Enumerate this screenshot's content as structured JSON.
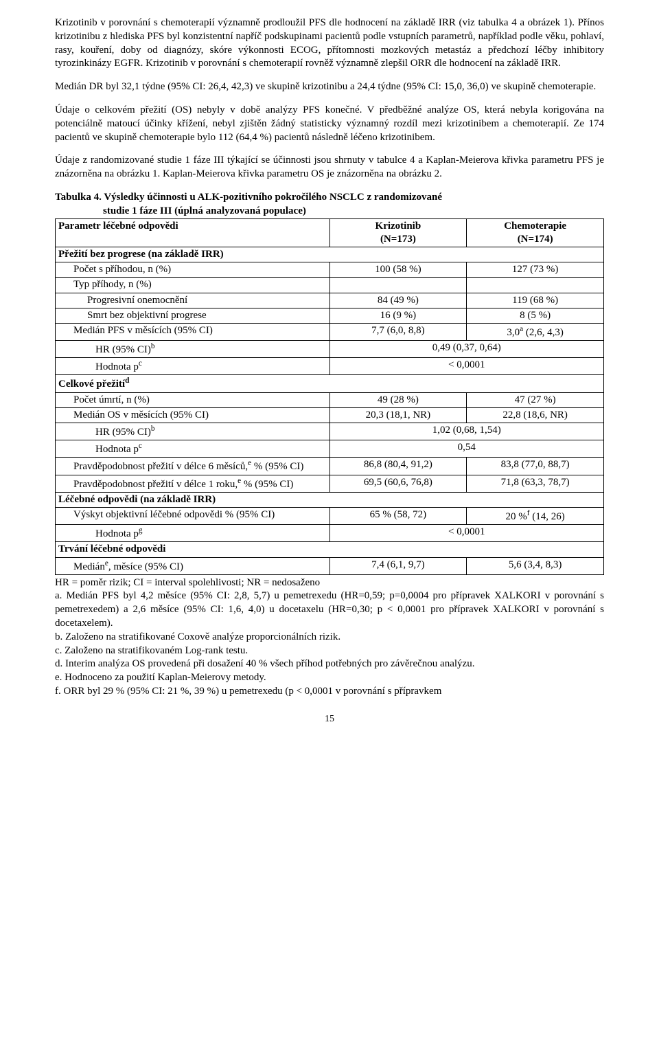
{
  "para1": "Krizotinib v porovnání s chemoterapií významně prodloužil PFS dle hodnocení na základě IRR (viz tabulka 4 a obrázek 1). Přínos krizotinibu z hlediska PFS byl konzistentní napříč podskupinami pacientů podle vstupních parametrů, například podle věku, pohlaví, rasy, kouření, doby od diagnózy, skóre výkonnosti ECOG, přítomnosti mozkových metastáz a předchozí léčby inhibitory tyrozinkinázy EGFR. Krizotinib v porovnání s chemoterapií rovněž významně zlepšil ORR dle hodnocení na základě IRR.",
  "para2": "Medián DR byl 32,1 týdne (95% CI: 26,4, 42,3) ve skupině krizotinibu a 24,4 týdne (95% CI: 15,0, 36,0) ve skupině chemoterapie.",
  "para3": "Údaje o celkovém přežití (OS) nebyly v době analýzy PFS konečné. V předběžné analýze OS, která nebyla korigována na potenciálně matoucí účinky křížení, nebyl zjištěn žádný statisticky významný rozdíl mezi krizotinibem a chemoterapií. Ze 174 pacientů ve skupině chemoterapie bylo 112 (64,4 %) pacientů následně léčeno krizotinibem.",
  "para4": "Údaje z randomizované studie 1 fáze III týkající se účinnosti jsou shrnuty v tabulce 4 a Kaplan-Meierova křivka parametru PFS je znázorněna na obrázku 1. Kaplan-Meierova křivka parametru OS je znázorněna na obrázku 2.",
  "tableTitle": {
    "line1a": "Tabulka 4. ",
    "line1b": "Výsledky účinnosti u ALK-pozitivního pokročilého NSCLC z randomizované",
    "line2": "studie 1 fáze III (úplná analyzovaná populace)"
  },
  "headers": {
    "param": "Parametr léčebné odpovědi",
    "krizo": "Krizotinib",
    "krizoN": "(N=173)",
    "chemo": "Chemoterapie",
    "chemoN": "(N=174)"
  },
  "rows": {
    "pfsHdr": "Přežití bez progrese (na základě IRR)",
    "pocPrih": {
      "label": "Počet s příhodou, n (%)",
      "a": "100 (58 %)",
      "b": "127 (73 %)"
    },
    "typPrih": "Typ příhody, n (%)",
    "prog": {
      "label": "Progresivní onemocnění",
      "a": "84 (49 %)",
      "b": "119 (68 %)"
    },
    "smrt": {
      "label": "Smrt bez objektivní progrese",
      "a": "16 (9 %)",
      "b": "8 (5 %)"
    },
    "medPFS": {
      "label": "Medián PFS v měsících (95% CI)",
      "a": "7,7 (6,0, 8,8)",
      "b_pre": "3,0",
      "b_sup": "a",
      "b_post": " (2,6, 4,3)"
    },
    "hr1": {
      "label_pre": "HR (95% CI)",
      "label_sup": "b",
      "val": "0,49 (0,37, 0,64)"
    },
    "p1": {
      "label_pre": "Hodnota p",
      "label_sup": "c",
      "val": "< 0,0001"
    },
    "osHdr_pre": "Celkové přežití",
    "osHdr_sup": "d",
    "pocUm": {
      "label": "Počet úmrtí, n (%)",
      "a": "49 (28 %)",
      "b": "47 (27 %)"
    },
    "medOS": {
      "label": "Medián OS v měsících (95% CI)",
      "a": "20,3 (18,1, NR)",
      "b": "22,8 (18,6, NR)"
    },
    "hr2": {
      "label_pre": "HR (95% CI)",
      "label_sup": "b",
      "val": "1,02 (0,68, 1,54)"
    },
    "p2": {
      "label_pre": "Hodnota p",
      "label_sup": "c",
      "val": "0,54"
    },
    "surv6": {
      "label_pre": "Pravděpodobnost přežití v délce 6 měsíců,",
      "label_sup": "e",
      "label_post": " % (95% CI)",
      "a": "86,8 (80,4, 91,2)",
      "b": "83,8 (77,0, 88,7)"
    },
    "surv12": {
      "label_pre": "Pravděpodobnost přežití v délce 1 roku,",
      "label_sup": "e",
      "label_post": " % (95% CI)",
      "a": "69,5 (60,6, 76,8)",
      "b": "71,8 (63,3, 78,7)"
    },
    "respHdr": "Léčebné odpovědi (na základě IRR)",
    "orr": {
      "label": "Výskyt objektivní léčebné odpovědi % (95% CI)",
      "a": "65 % (58, 72)",
      "b_pre": "20 %",
      "b_sup": "f",
      "b_post": " (14, 26)"
    },
    "p3": {
      "label_pre": "Hodnota p",
      "label_sup": "g",
      "val": "< 0,0001"
    },
    "durHdr": "Trvání léčebné odpovědi",
    "medDur": {
      "label_pre": "Medián",
      "label_sup": "e",
      "label_post": ", měsíce (95% CI)",
      "a": "7,4 (6,1, 9,7)",
      "b": "5,6 (3,4, 8,3)"
    }
  },
  "footnotes": {
    "hr": "HR = poměr rizik; CI = interval spolehlivosti; NR = nedosaženo",
    "a": "a. Medián PFS byl 4,2 měsíce (95% CI: 2,8, 5,7) u pemetrexedu (HR=0,59; p=0,0004 pro přípravek XALKORI v porovnání s pemetrexedem) a 2,6 měsíce (95% CI: 1,6, 4,0) u docetaxelu (HR=0,30; p < 0,0001 pro přípravek XALKORI v porovnání s docetaxelem).",
    "b": "b. Založeno na stratifikované Coxově analýze proporcionálních rizik.",
    "c": "c. Založeno na stratifikovaném Log-rank testu.",
    "d": "d. Interim analýza OS provedená při dosažení 40 % všech příhod potřebných pro závěrečnou analýzu.",
    "e": "e. Hodnoceno za použití Kaplan-Meierovy metody.",
    "f": "f. ORR byl 29 % (95% CI: 21 %, 39 %) u pemetrexedu (p < 0,0001 v porovnání s přípravkem"
  },
  "pageNumber": "15"
}
